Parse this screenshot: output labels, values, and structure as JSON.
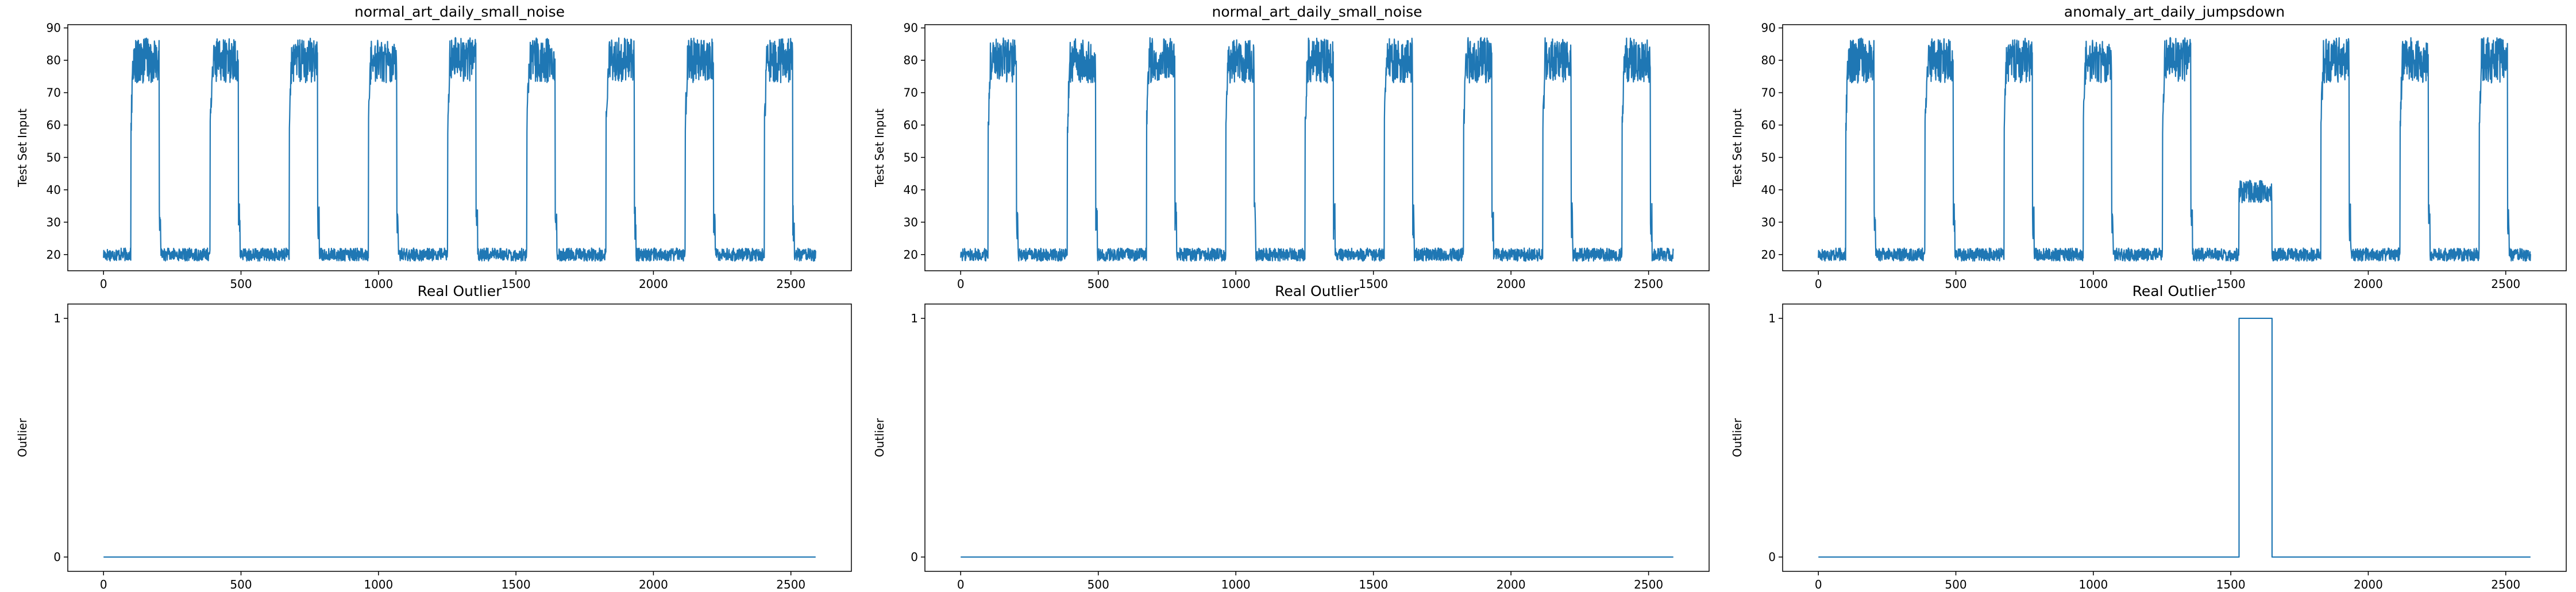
{
  "chart_data": [
    {
      "type": "line",
      "title": "normal_art_daily_small_noise",
      "xlabel": "",
      "ylabel": "Test Set Input",
      "xlim": [
        -130,
        2720
      ],
      "ylim": [
        15,
        91
      ],
      "x_ticks": [
        0,
        500,
        1000,
        1500,
        2000,
        2500
      ],
      "y_ticks": [
        20,
        30,
        40,
        50,
        60,
        70,
        80,
        90
      ],
      "color": "#1f77b4",
      "grid": false,
      "series": [
        {
          "day_length": 288,
          "period_count": 9,
          "low_range": [
            18,
            22
          ],
          "high_range": [
            73,
            87
          ],
          "active_windows": [
            [
              100,
              203
            ],
            [
              388,
              491
            ],
            [
              676,
              779
            ],
            [
              964,
              1067
            ],
            [
              1252,
              1355
            ],
            [
              1540,
              1643
            ],
            [
              1828,
              1931
            ],
            [
              2116,
              2219
            ],
            [
              2404,
              2507
            ]
          ],
          "x_range": [
            0,
            2590
          ]
        }
      ]
    },
    {
      "type": "line",
      "title": "normal_art_daily_small_noise",
      "xlabel": "",
      "ylabel": "Test Set Input",
      "xlim": [
        -130,
        2720
      ],
      "ylim": [
        15,
        91
      ],
      "x_ticks": [
        0,
        500,
        1000,
        1500,
        2000,
        2500
      ],
      "y_ticks": [
        20,
        30,
        40,
        50,
        60,
        70,
        80,
        90
      ],
      "color": "#1f77b4",
      "grid": false,
      "series": [
        {
          "day_length": 288,
          "period_count": 9,
          "low_range": [
            18,
            22
          ],
          "high_range": [
            73,
            87
          ],
          "active_windows": [
            [
              100,
              203
            ],
            [
              388,
              491
            ],
            [
              676,
              779
            ],
            [
              964,
              1067
            ],
            [
              1252,
              1355
            ],
            [
              1540,
              1643
            ],
            [
              1828,
              1931
            ],
            [
              2116,
              2219
            ],
            [
              2404,
              2507
            ]
          ],
          "x_range": [
            0,
            2590
          ]
        }
      ]
    },
    {
      "type": "line",
      "title": "anomaly_art_daily_jumpsdown",
      "xlabel": "",
      "ylabel": "Test Set Input",
      "xlim": [
        -130,
        2720
      ],
      "ylim": [
        15,
        91
      ],
      "x_ticks": [
        0,
        500,
        1000,
        1500,
        2000,
        2500
      ],
      "y_ticks": [
        20,
        30,
        40,
        50,
        60,
        70,
        80,
        90
      ],
      "color": "#1f77b4",
      "grid": false,
      "series": [
        {
          "day_length": 288,
          "period_count": 9,
          "low_range": [
            18,
            22
          ],
          "high_range": [
            73,
            87
          ],
          "active_windows": [
            [
              100,
              203
            ],
            [
              388,
              491
            ],
            [
              676,
              779
            ],
            [
              964,
              1067
            ],
            [
              1252,
              1355
            ],
            [
              1540,
              1643
            ],
            [
              1828,
              1931
            ],
            [
              2116,
              2219
            ],
            [
              2404,
              2507
            ]
          ],
          "anomaly_window": [
            1530,
            1650
          ],
          "anomaly_range": [
            36,
            43
          ],
          "x_range": [
            0,
            2590
          ]
        }
      ]
    },
    {
      "type": "line",
      "title": "Real Outlier",
      "xlabel": "",
      "ylabel": "Outlier",
      "xlim": [
        -130,
        2720
      ],
      "ylim": [
        -0.06,
        1.06
      ],
      "x_ticks": [
        0,
        500,
        1000,
        1500,
        2000,
        2500
      ],
      "y_ticks": [
        0,
        1
      ],
      "color": "#1f77b4",
      "grid": false,
      "series": [
        {
          "x": [
            0,
            2590
          ],
          "y": [
            0,
            0
          ]
        }
      ]
    },
    {
      "type": "line",
      "title": "Real Outlier",
      "xlabel": "",
      "ylabel": "Outlier",
      "xlim": [
        -130,
        2720
      ],
      "ylim": [
        -0.06,
        1.06
      ],
      "x_ticks": [
        0,
        500,
        1000,
        1500,
        2000,
        2500
      ],
      "y_ticks": [
        0,
        1
      ],
      "color": "#1f77b4",
      "grid": false,
      "series": [
        {
          "x": [
            0,
            2590
          ],
          "y": [
            0,
            0
          ]
        }
      ]
    },
    {
      "type": "line",
      "title": "Real Outlier",
      "xlabel": "",
      "ylabel": "Outlier",
      "xlim": [
        -130,
        2720
      ],
      "ylim": [
        -0.06,
        1.06
      ],
      "x_ticks": [
        0,
        500,
        1000,
        1500,
        2000,
        2500
      ],
      "y_ticks": [
        0,
        1
      ],
      "color": "#1f77b4",
      "grid": false,
      "series": [
        {
          "x": [
            0,
            1530,
            1530,
            1650,
            1650,
            2590
          ],
          "y": [
            0,
            0,
            1,
            1,
            0,
            0
          ]
        }
      ]
    }
  ]
}
